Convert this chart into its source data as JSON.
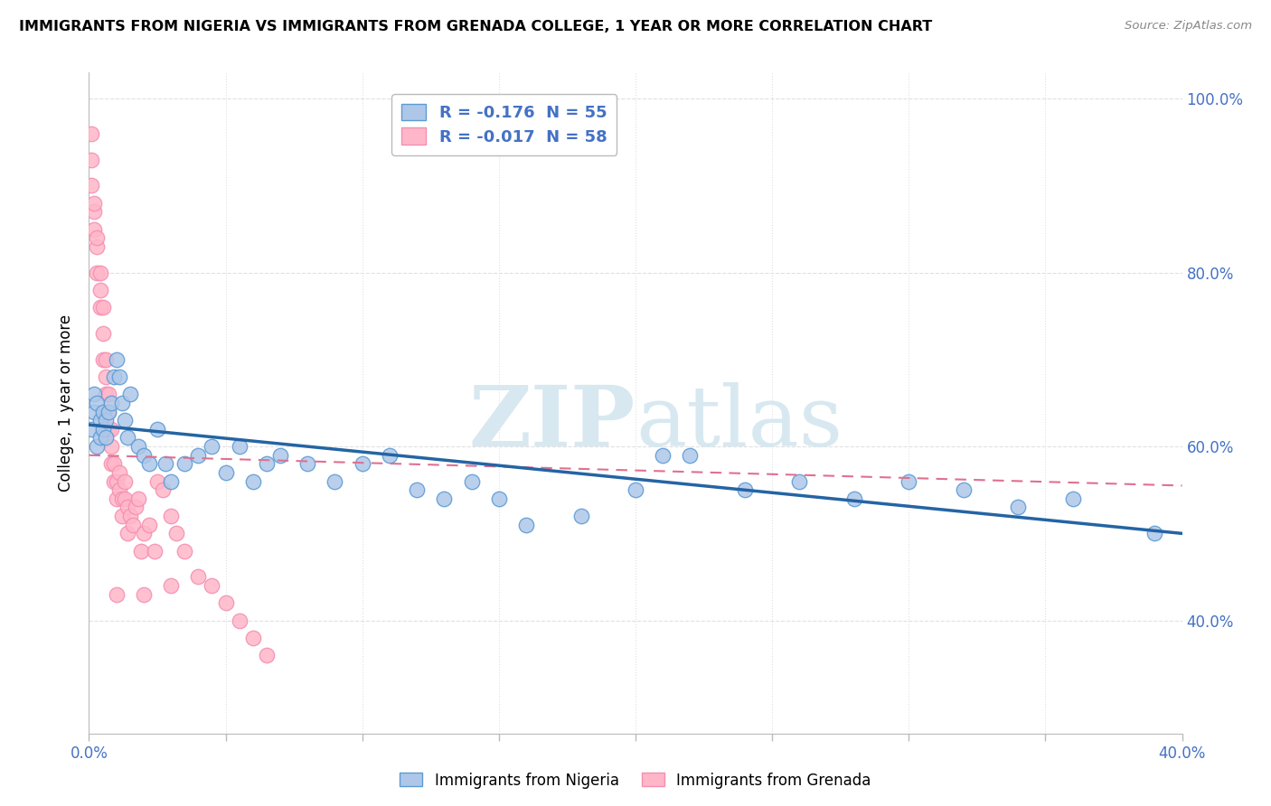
{
  "title": "IMMIGRANTS FROM NIGERIA VS IMMIGRANTS FROM GRENADA COLLEGE, 1 YEAR OR MORE CORRELATION CHART",
  "source": "Source: ZipAtlas.com",
  "ylabel": "College, 1 year or more",
  "xlim": [
    0.0,
    0.4
  ],
  "ylim": [
    0.27,
    1.03
  ],
  "ytick_positions": [
    0.4,
    0.6,
    0.8,
    1.0
  ],
  "ytick_labels": [
    "40.0%",
    "60.0%",
    "80.0%",
    "100.0%"
  ],
  "xtick_positions": [
    0.0,
    0.05,
    0.1,
    0.15,
    0.2,
    0.25,
    0.3,
    0.35,
    0.4
  ],
  "xtick_labels": [
    "0.0%",
    "",
    "",
    "",
    "",
    "",
    "",
    "",
    "40.0%"
  ],
  "legend_label1": "Immigrants from Nigeria",
  "legend_label2": "Immigrants from Grenada",
  "R1": -0.176,
  "N1": 55,
  "R2": -0.017,
  "N2": 58,
  "color_nigeria": "#aec7e8",
  "color_grenada": "#ffb6c8",
  "color_nigeria_edge": "#5b9bd5",
  "color_grenada_edge": "#f48fb1",
  "color_nigeria_line": "#2464a4",
  "color_grenada_line": "#e07090",
  "watermark_color": "#d8e8f0",
  "tick_color": "#4472c4",
  "grid_color": "#e0e0e0",
  "nigeria_x": [
    0.001,
    0.002,
    0.002,
    0.003,
    0.003,
    0.004,
    0.004,
    0.005,
    0.005,
    0.006,
    0.006,
    0.007,
    0.008,
    0.009,
    0.01,
    0.011,
    0.012,
    0.013,
    0.014,
    0.015,
    0.018,
    0.02,
    0.022,
    0.025,
    0.028,
    0.03,
    0.035,
    0.04,
    0.045,
    0.05,
    0.055,
    0.06,
    0.065,
    0.07,
    0.08,
    0.09,
    0.1,
    0.11,
    0.12,
    0.13,
    0.14,
    0.15,
    0.16,
    0.18,
    0.2,
    0.21,
    0.22,
    0.24,
    0.26,
    0.28,
    0.3,
    0.32,
    0.34,
    0.36,
    0.39
  ],
  "nigeria_y": [
    0.62,
    0.64,
    0.66,
    0.6,
    0.65,
    0.61,
    0.63,
    0.62,
    0.64,
    0.61,
    0.63,
    0.64,
    0.65,
    0.68,
    0.7,
    0.68,
    0.65,
    0.63,
    0.61,
    0.66,
    0.6,
    0.59,
    0.58,
    0.62,
    0.58,
    0.56,
    0.58,
    0.59,
    0.6,
    0.57,
    0.6,
    0.56,
    0.58,
    0.59,
    0.58,
    0.56,
    0.58,
    0.59,
    0.55,
    0.54,
    0.56,
    0.54,
    0.51,
    0.52,
    0.55,
    0.59,
    0.59,
    0.55,
    0.56,
    0.54,
    0.56,
    0.55,
    0.53,
    0.54,
    0.5
  ],
  "grenada_x": [
    0.001,
    0.001,
    0.001,
    0.002,
    0.002,
    0.002,
    0.003,
    0.003,
    0.003,
    0.004,
    0.004,
    0.004,
    0.005,
    0.005,
    0.005,
    0.006,
    0.006,
    0.006,
    0.007,
    0.007,
    0.007,
    0.008,
    0.008,
    0.008,
    0.009,
    0.009,
    0.01,
    0.01,
    0.011,
    0.011,
    0.012,
    0.012,
    0.013,
    0.013,
    0.014,
    0.014,
    0.015,
    0.016,
    0.017,
    0.018,
    0.019,
    0.02,
    0.022,
    0.024,
    0.025,
    0.027,
    0.03,
    0.032,
    0.035,
    0.04,
    0.045,
    0.05,
    0.055,
    0.06,
    0.065,
    0.01,
    0.02,
    0.03
  ],
  "grenada_y": [
    0.93,
    0.96,
    0.9,
    0.87,
    0.85,
    0.88,
    0.83,
    0.8,
    0.84,
    0.78,
    0.8,
    0.76,
    0.76,
    0.73,
    0.7,
    0.7,
    0.68,
    0.66,
    0.66,
    0.64,
    0.62,
    0.62,
    0.6,
    0.58,
    0.58,
    0.56,
    0.56,
    0.54,
    0.57,
    0.55,
    0.54,
    0.52,
    0.54,
    0.56,
    0.53,
    0.5,
    0.52,
    0.51,
    0.53,
    0.54,
    0.48,
    0.5,
    0.51,
    0.48,
    0.56,
    0.55,
    0.52,
    0.5,
    0.48,
    0.45,
    0.44,
    0.42,
    0.4,
    0.38,
    0.36,
    0.43,
    0.43,
    0.44
  ],
  "nig_line_x": [
    0.0,
    0.4
  ],
  "nig_line_y": [
    0.625,
    0.5
  ],
  "gren_line_x": [
    0.0,
    0.4
  ],
  "gren_line_y": [
    0.59,
    0.555
  ]
}
